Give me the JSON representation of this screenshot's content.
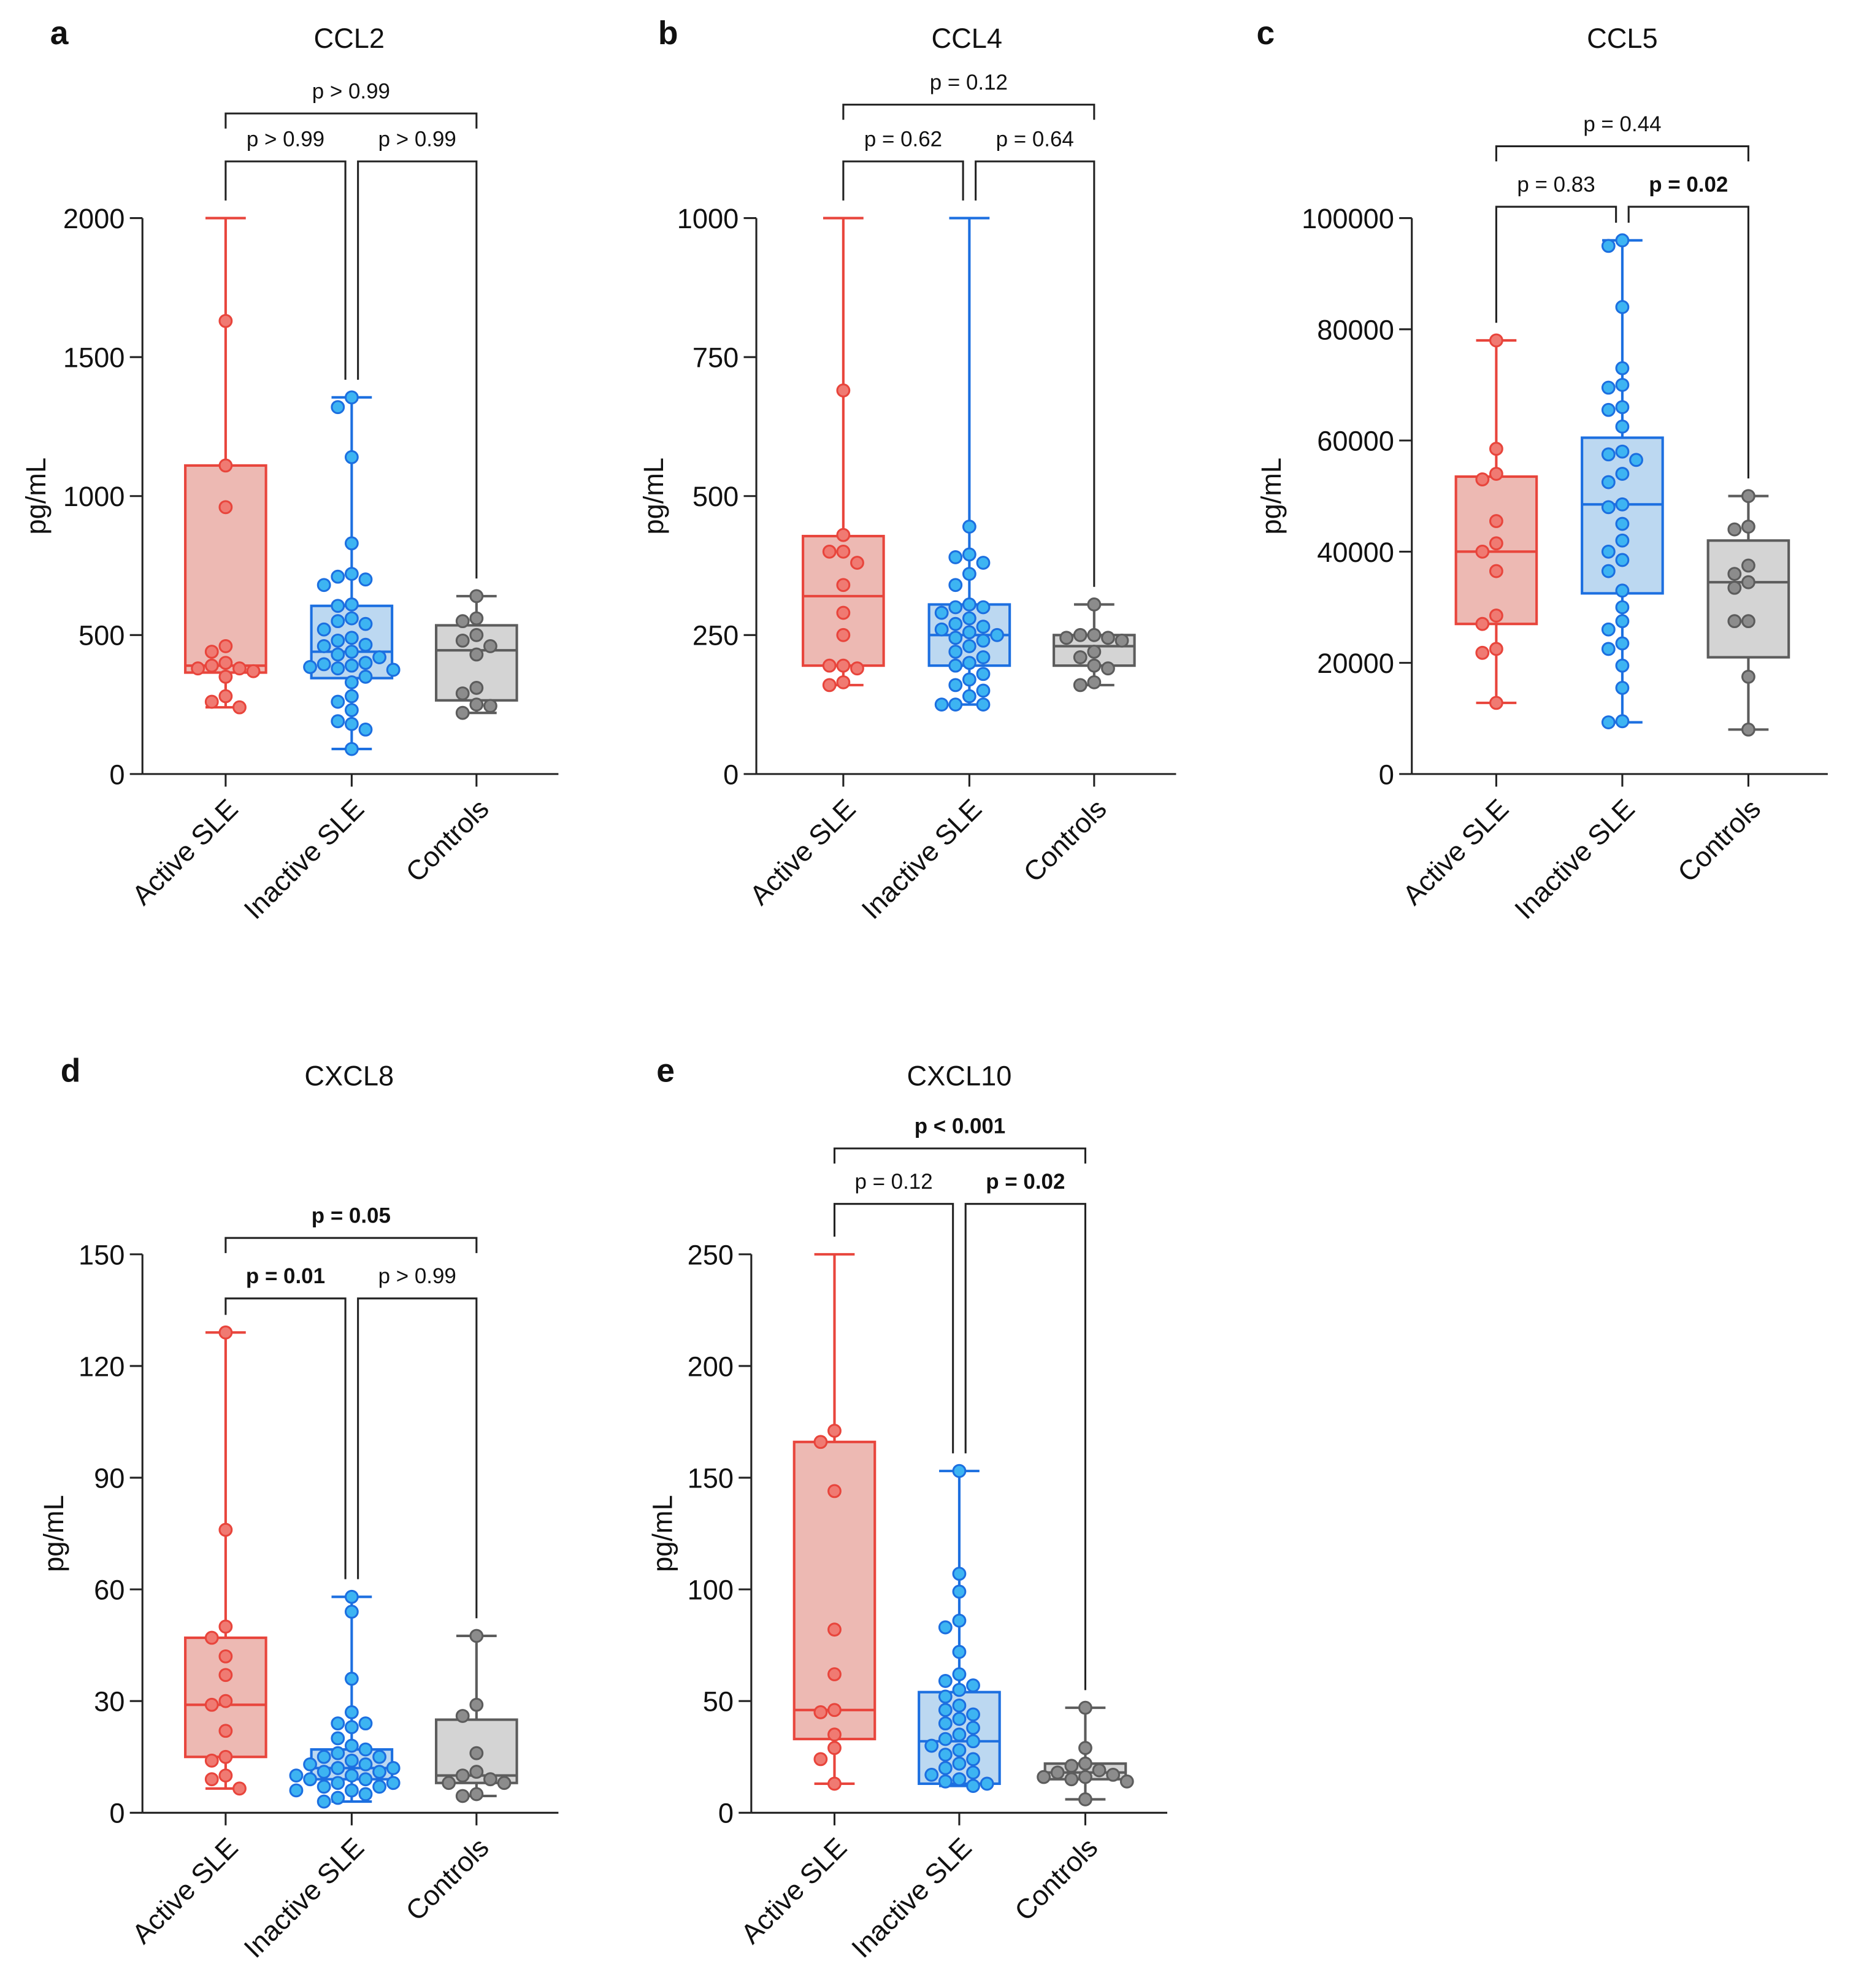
{
  "colors": {
    "active": {
      "stroke": "#e8453c",
      "fill": "#edb9b3",
      "point": "#f07a72"
    },
    "inactive": {
      "stroke": "#1c6fe0",
      "fill": "#bcd8f1",
      "point": "#3db4f2"
    },
    "controls": {
      "stroke": "#5c5c5c",
      "fill": "#d4d4d4",
      "point": "#8c8c8c"
    }
  },
  "chart_data": [
    {
      "type": "box",
      "letter": "a",
      "title": "CCL2",
      "ylabel": "pg/mL",
      "ylim": [
        0,
        2000
      ],
      "ticks": [
        "0",
        "500",
        "1000",
        "1500",
        "2000"
      ],
      "tick_values": [
        0,
        500,
        1000,
        1500,
        2000
      ],
      "categories": [
        "Active SLE",
        "Inactive SLE",
        "Controls"
      ],
      "series": [
        {
          "name": "Active SLE",
          "min": 240,
          "q1": 365,
          "median": 390,
          "q3": 1110,
          "max": 2000,
          "points": [
            1630,
            1110,
            960,
            460,
            440,
            400,
            390,
            380,
            380,
            370,
            350,
            280,
            260,
            240
          ]
        },
        {
          "name": "Inactive SLE",
          "min": 90,
          "q1": 345,
          "median": 440,
          "q3": 605,
          "max": 1355,
          "points": [
            1355,
            1320,
            1140,
            830,
            720,
            710,
            700,
            680,
            610,
            605,
            560,
            550,
            540,
            520,
            490,
            480,
            465,
            460,
            440,
            430,
            420,
            400,
            395,
            390,
            385,
            380,
            375,
            350,
            330,
            280,
            260,
            230,
            190,
            180,
            160,
            90
          ]
        },
        {
          "name": "Controls",
          "min": 220,
          "q1": 265,
          "median": 445,
          "q3": 535,
          "max": 640,
          "points": [
            640,
            560,
            550,
            500,
            480,
            460,
            430,
            310,
            290,
            250,
            245,
            220
          ]
        }
      ],
      "comparisons": [
        {
          "groups": [
            0,
            1
          ],
          "label": "p > 0.99",
          "significant": false
        },
        {
          "groups": [
            1,
            2
          ],
          "label": "p > 0.99",
          "significant": false
        },
        {
          "groups": [
            0,
            2
          ],
          "label": "p > 0.99",
          "significant": false
        }
      ]
    },
    {
      "type": "box",
      "letter": "b",
      "title": "CCL4",
      "ylabel": "pg/mL",
      "ylim": [
        0,
        1000
      ],
      "ticks": [
        "0",
        "250",
        "500",
        "750",
        "1000"
      ],
      "tick_values": [
        0,
        250,
        500,
        750,
        1000
      ],
      "categories": [
        "Active SLE",
        "Inactive SLE",
        "Controls"
      ],
      "series": [
        {
          "name": "Active SLE",
          "min": 160,
          "q1": 195,
          "median": 320,
          "q3": 428,
          "max": 1000,
          "points": [
            690,
            430,
            400,
            400,
            380,
            340,
            290,
            250,
            195,
            195,
            190,
            165,
            160
          ]
        },
        {
          "name": "Inactive SLE",
          "min": 125,
          "q1": 195,
          "median": 250,
          "q3": 305,
          "max": 1000,
          "points": [
            445,
            395,
            390,
            380,
            360,
            340,
            305,
            300,
            300,
            290,
            280,
            270,
            265,
            260,
            255,
            250,
            245,
            240,
            230,
            220,
            210,
            200,
            195,
            180,
            170,
            160,
            150,
            140,
            125,
            125,
            125
          ]
        },
        {
          "name": "Controls",
          "min": 160,
          "q1": 195,
          "median": 230,
          "q3": 250,
          "max": 305,
          "points": [
            305,
            250,
            250,
            245,
            245,
            240,
            220,
            210,
            195,
            190,
            165,
            160
          ]
        }
      ],
      "comparisons": [
        {
          "groups": [
            0,
            1
          ],
          "label": "p = 0.62",
          "significant": false
        },
        {
          "groups": [
            1,
            2
          ],
          "label": "p = 0.64",
          "significant": false
        },
        {
          "groups": [
            0,
            2
          ],
          "label": "p = 0.12",
          "significant": false
        }
      ]
    },
    {
      "type": "box",
      "letter": "c",
      "title": "CCL5",
      "ylabel": "pg/mL",
      "ylim": [
        0,
        100000
      ],
      "ticks": [
        "0",
        "20000",
        "40000",
        "60000",
        "80000",
        "100000"
      ],
      "tick_values": [
        0,
        20000,
        40000,
        60000,
        80000,
        100000
      ],
      "categories": [
        "Active SLE",
        "Inactive SLE",
        "Controls"
      ],
      "series": [
        {
          "name": "Active SLE",
          "min": 12800,
          "q1": 27000,
          "median": 40000,
          "q3": 53500,
          "max": 78000,
          "points": [
            78000,
            58500,
            54000,
            53000,
            45500,
            41500,
            40000,
            36500,
            28500,
            27000,
            22500,
            21800,
            12800
          ]
        },
        {
          "name": "Inactive SLE",
          "min": 9300,
          "q1": 32500,
          "median": 48500,
          "q3": 60500,
          "max": 96000,
          "points": [
            96000,
            95000,
            84000,
            73000,
            70000,
            69500,
            66000,
            65500,
            62500,
            58000,
            57500,
            56500,
            54000,
            52500,
            48500,
            48000,
            45000,
            42000,
            40000,
            38500,
            36500,
            33000,
            30000,
            27500,
            26000,
            23500,
            22500,
            19500,
            15500,
            9500,
            9300
          ]
        },
        {
          "name": "Controls",
          "min": 8000,
          "q1": 21000,
          "median": 34500,
          "q3": 42000,
          "max": 50000,
          "points": [
            50000,
            44500,
            44000,
            37500,
            36000,
            34500,
            33500,
            27500,
            27500,
            17500,
            8000
          ]
        }
      ],
      "comparisons": [
        {
          "groups": [
            0,
            1
          ],
          "label": "p = 0.83",
          "significant": false
        },
        {
          "groups": [
            1,
            2
          ],
          "label": "p = 0.02",
          "significant": true
        },
        {
          "groups": [
            0,
            2
          ],
          "label": "p = 0.44",
          "significant": false
        }
      ]
    },
    {
      "type": "box",
      "letter": "d",
      "title": "CXCL8",
      "ylabel": "pg/mL",
      "ylim": [
        0,
        150
      ],
      "ticks": [
        "0",
        "30",
        "60",
        "90",
        "120",
        "150"
      ],
      "tick_values": [
        0,
        30,
        60,
        90,
        120,
        150
      ],
      "categories": [
        "Active SLE",
        "Inactive SLE",
        "Controls"
      ],
      "series": [
        {
          "name": "Active SLE",
          "min": 6.5,
          "q1": 15,
          "median": 29,
          "q3": 47,
          "max": 129,
          "points": [
            129,
            76,
            50,
            47,
            42,
            37,
            30,
            29,
            22,
            15,
            14,
            10,
            9,
            6.5
          ]
        },
        {
          "name": "Inactive SLE",
          "min": 3,
          "q1": 9,
          "median": 12,
          "q3": 17,
          "max": 58,
          "points": [
            58,
            54,
            36,
            27,
            24,
            24,
            23,
            20,
            18,
            17,
            16,
            15,
            15,
            14,
            13,
            13,
            12,
            12,
            11,
            11,
            10,
            10,
            9,
            9,
            8,
            8,
            7,
            7,
            6,
            6,
            5,
            4,
            3
          ]
        },
        {
          "name": "Controls",
          "min": 4.5,
          "q1": 8,
          "median": 10,
          "q3": 25,
          "max": 47.5,
          "points": [
            47.5,
            29,
            26,
            16,
            11,
            10,
            9,
            8,
            8,
            5,
            4.5
          ]
        }
      ],
      "comparisons": [
        {
          "groups": [
            0,
            1
          ],
          "label": "p = 0.01",
          "significant": true
        },
        {
          "groups": [
            1,
            2
          ],
          "label": "p > 0.99",
          "significant": false
        },
        {
          "groups": [
            0,
            2
          ],
          "label": "p = 0.05",
          "significant": true
        }
      ]
    },
    {
      "type": "box",
      "letter": "e",
      "title": "CXCL10",
      "ylabel": "pg/mL",
      "ylim": [
        0,
        250
      ],
      "ticks": [
        "0",
        "50",
        "100",
        "150",
        "200",
        "250"
      ],
      "tick_values": [
        0,
        50,
        100,
        150,
        200,
        250
      ],
      "categories": [
        "Active SLE",
        "Inactive SLE",
        "Controls"
      ],
      "series": [
        {
          "name": "Active SLE",
          "min": 13,
          "q1": 33,
          "median": 46,
          "q3": 166,
          "max": 250,
          "points": [
            171,
            166,
            144,
            82,
            62,
            46,
            45,
            35,
            29,
            24,
            13
          ]
        },
        {
          "name": "Inactive SLE",
          "min": 12,
          "q1": 13,
          "median": 32,
          "q3": 54,
          "max": 153,
          "points": [
            153,
            107,
            99,
            86,
            83,
            72,
            62,
            59,
            57,
            55,
            52,
            48,
            46,
            44,
            42,
            40,
            38,
            35,
            33,
            32,
            30,
            28,
            26,
            24,
            22,
            20,
            18,
            17,
            15,
            14,
            13,
            12
          ]
        },
        {
          "name": "Controls",
          "min": 6,
          "q1": 15,
          "median": 18,
          "q3": 22,
          "max": 47,
          "points": [
            47,
            29,
            22,
            21,
            19,
            18,
            17,
            16,
            16,
            15,
            14,
            6
          ]
        }
      ],
      "comparisons": [
        {
          "groups": [
            0,
            1
          ],
          "label": "p = 0.12",
          "significant": false
        },
        {
          "groups": [
            1,
            2
          ],
          "label": "p = 0.02",
          "significant": true
        },
        {
          "groups": [
            0,
            2
          ],
          "label": "p < 0.001",
          "significant": true
        }
      ]
    }
  ]
}
